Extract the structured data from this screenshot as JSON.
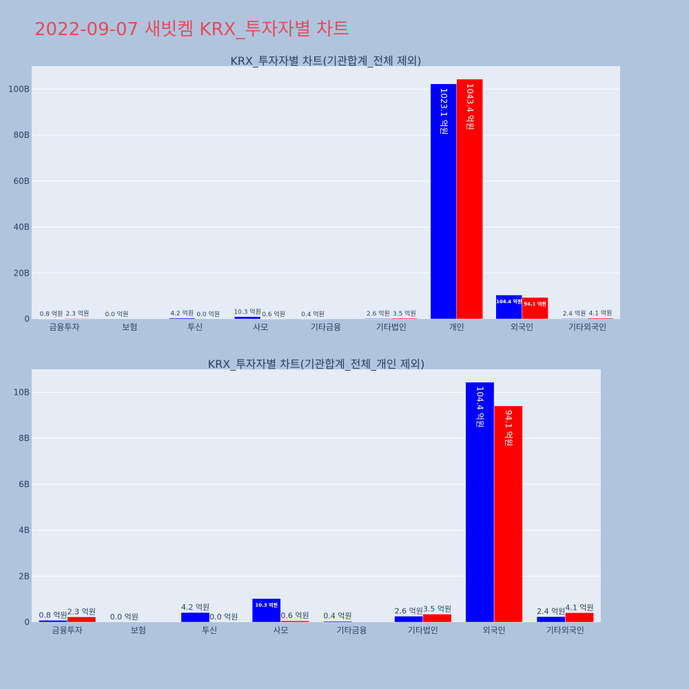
{
  "page": {
    "title": "2022-09-07 새빗켐 KRX_투자자별 차트"
  },
  "colors": {
    "buy": "#0000ff",
    "sell": "#ff0000",
    "plot_bg": "#e5ecf6",
    "page_bg": "#b0c4de",
    "title": "#e8495b"
  },
  "chart_data": [
    {
      "type": "bar",
      "title": "KRX_투자자별 차트(기관합계_전체 제외)",
      "categories": [
        "금융투자",
        "보험",
        "투신",
        "사모",
        "기타금융",
        "기타법인",
        "개인",
        "외국인",
        "기타외국인"
      ],
      "series": [
        {
          "values": [
            80000000,
            0,
            420000000,
            1030000000,
            40000000,
            260000000,
            102310000000,
            10440000000,
            240000000
          ],
          "labels": [
            "0.8 억원",
            "0.0 억원",
            "4.2 억원",
            "10.3 억원",
            "0.4 억원",
            "2.6 억원",
            "1023.1 억원",
            "104.4 억원",
            "2.4 억원"
          ]
        },
        {
          "values": [
            230000000,
            null,
            0,
            60000000,
            null,
            350000000,
            104340000000,
            9410000000,
            410000000
          ],
          "labels": [
            "2.3 억원",
            "",
            "0.0 억원",
            "0.6 억원",
            "",
            "3.5 억원",
            "1043.4 억원",
            "94.1 억원",
            "4.1 억원"
          ]
        }
      ],
      "ylim": [
        0,
        110000000000
      ],
      "yticks": [
        0,
        20000000000,
        40000000000,
        60000000000,
        80000000000,
        100000000000
      ],
      "ytick_labels": [
        "0",
        "20B",
        "40B",
        "60B",
        "80B",
        "100B"
      ],
      "grid": true
    },
    {
      "type": "bar",
      "title": "KRX_투자자별 차트(기관합계_전체_개인 제외)",
      "categories": [
        "금융투자",
        "보험",
        "투신",
        "사모",
        "기타금융",
        "기타법인",
        "외국인",
        "기타외국인"
      ],
      "series": [
        {
          "values": [
            80000000,
            0,
            420000000,
            1030000000,
            40000000,
            260000000,
            10440000000,
            240000000
          ],
          "labels": [
            "0.8 억원",
            "0.0 억원",
            "4.2 억원",
            "10.3 억원",
            "0.4 억원",
            "2.6 억원",
            "104.4 억원",
            "2.4 억원"
          ]
        },
        {
          "values": [
            230000000,
            null,
            0,
            60000000,
            null,
            350000000,
            9410000000,
            410000000
          ],
          "labels": [
            "2.3 억원",
            "",
            "0.0 억원",
            "0.6 억원",
            "",
            "3.5 억원",
            "94.1 억원",
            "4.1 억원"
          ]
        }
      ],
      "ylim": [
        0,
        11000000000
      ],
      "yticks": [
        0,
        2000000000,
        4000000000,
        6000000000,
        8000000000,
        10000000000
      ],
      "ytick_labels": [
        "0",
        "2B",
        "4B",
        "6B",
        "8B",
        "10B"
      ],
      "grid": true
    }
  ]
}
